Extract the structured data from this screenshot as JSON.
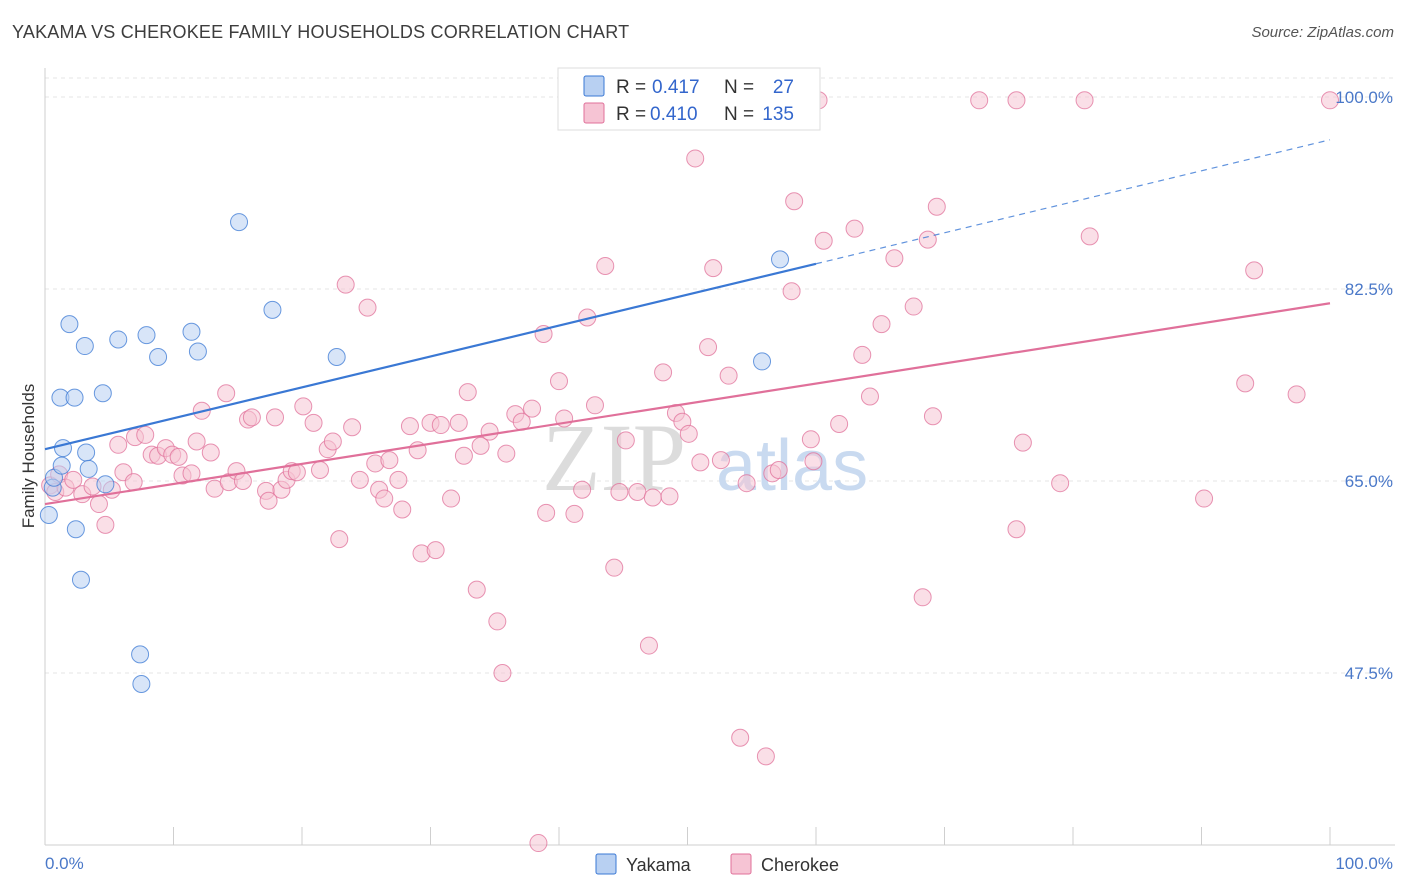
{
  "title": "YAKAMA VS CHEROKEE FAMILY HOUSEHOLDS CORRELATION CHART",
  "source": "Source: ZipAtlas.com",
  "watermark": {
    "zip": "ZIP",
    "atlas": "atlas"
  },
  "colors": {
    "yakama": "#3a78d4",
    "cherokee": "#e0709a",
    "yakama_fill": "#b8d0f2",
    "cherokee_fill": "#f6c4d4",
    "axis_text": "#4a78c8"
  },
  "chart_data": {
    "type": "scatter",
    "ylabel": "Family Households",
    "xlabel": "",
    "xlim": [
      0,
      100
    ],
    "ylim": [
      30,
      102
    ],
    "x_tick_labels": [
      "0.0%",
      "100.0%"
    ],
    "y_ticks": [
      {
        "value": 100.0,
        "label": "100.0%"
      },
      {
        "value": 82.5,
        "label": "82.5%"
      },
      {
        "value": 65.0,
        "label": "65.0%"
      },
      {
        "value": 47.5,
        "label": "47.5%"
      }
    ],
    "grid": true,
    "legend_position": "top-center",
    "legend": [
      {
        "r_label": "R =",
        "r": "0.417",
        "n_label": "N =",
        "n": "27"
      },
      {
        "r_label": "R =",
        "r": "0.410",
        "n_label": "N =",
        "n": "135"
      }
    ],
    "bottom_legend": [
      "Yakama",
      "Cherokee"
    ],
    "series": [
      {
        "name": "Yakama",
        "trend": {
          "x0": 0,
          "y0": 67.9,
          "x1": 60,
          "y1": 84.8,
          "dashed_to_x": 100,
          "dashed_to_y": 96.1
        },
        "points": [
          [
            0.3,
            61.9
          ],
          [
            0.6,
            64.4
          ],
          [
            0.7,
            65.3
          ],
          [
            1.2,
            72.6
          ],
          [
            1.4,
            68.0
          ],
          [
            1.3,
            66.4
          ],
          [
            1.9,
            79.3
          ],
          [
            2.3,
            72.6
          ],
          [
            2.4,
            60.6
          ],
          [
            2.8,
            56.0
          ],
          [
            3.1,
            77.3
          ],
          [
            3.2,
            67.6
          ],
          [
            3.4,
            66.1
          ],
          [
            4.5,
            73.0
          ],
          [
            4.7,
            64.7
          ],
          [
            5.7,
            77.9
          ],
          [
            7.4,
            49.2
          ],
          [
            7.5,
            46.5
          ],
          [
            7.9,
            78.3
          ],
          [
            8.8,
            76.3
          ],
          [
            11.4,
            78.6
          ],
          [
            11.9,
            76.8
          ],
          [
            15.1,
            88.6
          ],
          [
            17.7,
            80.6
          ],
          [
            22.7,
            76.3
          ],
          [
            55.8,
            75.9
          ],
          [
            57.2,
            85.2
          ]
        ]
      },
      {
        "name": "Cherokee",
        "trend": {
          "x0": 0,
          "y0": 62.9,
          "x1": 100,
          "y1": 81.2
        },
        "points": [
          [
            0.4,
            64.6
          ],
          [
            0.8,
            64.0
          ],
          [
            1.1,
            65.6
          ],
          [
            1.6,
            64.4
          ],
          [
            2.2,
            65.1
          ],
          [
            2.9,
            63.8
          ],
          [
            3.7,
            64.5
          ],
          [
            4.2,
            62.9
          ],
          [
            4.7,
            61.0
          ],
          [
            5.2,
            64.2
          ],
          [
            5.7,
            68.3
          ],
          [
            6.1,
            65.8
          ],
          [
            6.9,
            64.9
          ],
          [
            7.0,
            69.0
          ],
          [
            7.8,
            69.2
          ],
          [
            8.3,
            67.4
          ],
          [
            8.8,
            67.3
          ],
          [
            9.4,
            68.0
          ],
          [
            9.9,
            67.4
          ],
          [
            10.4,
            67.2
          ],
          [
            10.7,
            65.5
          ],
          [
            11.4,
            65.7
          ],
          [
            11.8,
            68.6
          ],
          [
            12.2,
            71.4
          ],
          [
            12.9,
            67.6
          ],
          [
            13.2,
            64.3
          ],
          [
            14.1,
            73.0
          ],
          [
            14.3,
            64.9
          ],
          [
            14.9,
            65.9
          ],
          [
            15.4,
            65.0
          ],
          [
            15.8,
            70.6
          ],
          [
            16.1,
            70.8
          ],
          [
            17.2,
            64.1
          ],
          [
            17.4,
            63.2
          ],
          [
            17.9,
            70.8
          ],
          [
            18.4,
            64.2
          ],
          [
            18.8,
            65.1
          ],
          [
            19.2,
            65.9
          ],
          [
            19.6,
            65.8
          ],
          [
            20.1,
            71.8
          ],
          [
            20.9,
            70.3
          ],
          [
            21.4,
            66.0
          ],
          [
            22.0,
            67.9
          ],
          [
            22.4,
            68.6
          ],
          [
            22.9,
            59.7
          ],
          [
            23.4,
            82.9
          ],
          [
            23.9,
            69.9
          ],
          [
            24.5,
            65.1
          ],
          [
            25.1,
            80.8
          ],
          [
            25.7,
            66.6
          ],
          [
            26.0,
            64.2
          ],
          [
            26.4,
            63.4
          ],
          [
            26.8,
            66.9
          ],
          [
            27.5,
            65.1
          ],
          [
            27.8,
            62.4
          ],
          [
            28.4,
            70.0
          ],
          [
            29.0,
            67.8
          ],
          [
            29.3,
            58.4
          ],
          [
            30.0,
            70.3
          ],
          [
            30.4,
            58.7
          ],
          [
            30.8,
            70.1
          ],
          [
            31.6,
            63.4
          ],
          [
            32.2,
            70.3
          ],
          [
            32.6,
            67.3
          ],
          [
            32.9,
            73.1
          ],
          [
            33.6,
            55.1
          ],
          [
            33.9,
            68.2
          ],
          [
            34.6,
            69.5
          ],
          [
            35.2,
            52.2
          ],
          [
            35.6,
            47.5
          ],
          [
            35.9,
            67.5
          ],
          [
            36.6,
            71.1
          ],
          [
            37.1,
            70.4
          ],
          [
            37.9,
            71.6
          ],
          [
            38.4,
            32.0
          ],
          [
            38.8,
            78.4
          ],
          [
            39.0,
            62.1
          ],
          [
            40.0,
            74.1
          ],
          [
            40.4,
            70.7
          ],
          [
            41.2,
            62.0
          ],
          [
            41.8,
            64.2
          ],
          [
            42.2,
            79.9
          ],
          [
            42.8,
            71.9
          ],
          [
            43.6,
            84.6
          ],
          [
            44.3,
            57.1
          ],
          [
            44.7,
            64.0
          ],
          [
            45.2,
            68.7
          ],
          [
            46.1,
            64.0
          ],
          [
            47.0,
            50.0
          ],
          [
            47.3,
            63.5
          ],
          [
            48.1,
            74.9
          ],
          [
            48.6,
            63.6
          ],
          [
            49.1,
            71.2
          ],
          [
            49.6,
            70.4
          ],
          [
            50.1,
            69.3
          ],
          [
            50.6,
            94.4
          ],
          [
            51.0,
            66.7
          ],
          [
            51.6,
            77.2
          ],
          [
            52.0,
            84.4
          ],
          [
            52.6,
            66.9
          ],
          [
            53.2,
            74.6
          ],
          [
            54.1,
            41.6
          ],
          [
            54.6,
            64.8
          ],
          [
            56.1,
            39.9
          ],
          [
            56.6,
            65.7
          ],
          [
            57.1,
            66.0
          ],
          [
            58.3,
            90.5
          ],
          [
            58.1,
            82.3
          ],
          [
            59.6,
            68.8
          ],
          [
            59.8,
            66.8
          ],
          [
            60.2,
            99.7
          ],
          [
            60.6,
            86.9
          ],
          [
            61.8,
            70.2
          ],
          [
            63.0,
            88.0
          ],
          [
            63.6,
            76.5
          ],
          [
            64.2,
            72.7
          ],
          [
            65.1,
            79.3
          ],
          [
            66.1,
            85.3
          ],
          [
            67.6,
            80.9
          ],
          [
            68.3,
            54.4
          ],
          [
            68.7,
            87.0
          ],
          [
            69.1,
            70.9
          ],
          [
            69.4,
            90.0
          ],
          [
            72.7,
            99.7
          ],
          [
            75.6,
            99.7
          ],
          [
            75.6,
            60.6
          ],
          [
            76.1,
            68.5
          ],
          [
            79.0,
            64.8
          ],
          [
            80.9,
            99.7
          ],
          [
            81.3,
            87.3
          ],
          [
            90.2,
            63.4
          ],
          [
            93.4,
            73.9
          ],
          [
            94.1,
            84.2
          ],
          [
            97.4,
            72.9
          ],
          [
            100.0,
            99.7
          ]
        ]
      }
    ]
  }
}
